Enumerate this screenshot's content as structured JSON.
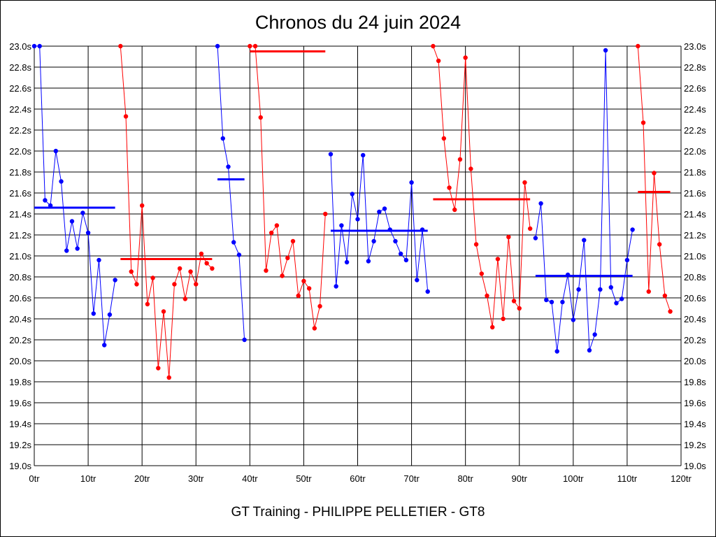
{
  "title": "Chronos du 24 juin 2024",
  "footer": "GT Training - PHILIPPE PELLETIER - GT8",
  "colors": {
    "session_a": "#0000ff",
    "session_b": "#ff0000",
    "grid": "#000000"
  },
  "chart_data": {
    "type": "line",
    "title": "Chronos du 24 juin 2024",
    "xlabel": "",
    "ylabel": "",
    "xlim": [
      0,
      120
    ],
    "ylim": [
      19.0,
      23.0
    ],
    "grid": true,
    "x_ticks": [
      "0tr",
      "10tr",
      "20tr",
      "30tr",
      "40tr",
      "50tr",
      "60tr",
      "70tr",
      "80tr",
      "90tr",
      "100tr",
      "110tr",
      "120tr"
    ],
    "y_ticks": [
      "19.0s",
      "19.2s",
      "19.4s",
      "19.6s",
      "19.8s",
      "20.0s",
      "20.2s",
      "20.4s",
      "20.6s",
      "20.8s",
      "21.0s",
      "21.2s",
      "21.4s",
      "21.6s",
      "21.8s",
      "22.0s",
      "22.2s",
      "22.4s",
      "22.6s",
      "22.8s",
      "23.0s"
    ],
    "series": [
      {
        "color": "#0000ff",
        "avg": 21.46,
        "avg_x": [
          0,
          15
        ],
        "x": [
          0,
          1,
          2,
          3,
          4,
          5,
          6,
          7,
          8,
          9,
          10,
          11,
          12,
          13,
          14,
          15
        ],
        "values": [
          23.0,
          23.0,
          21.53,
          21.48,
          22.0,
          21.71,
          21.05,
          21.33,
          21.07,
          21.41,
          21.22,
          20.45,
          20.96,
          20.15,
          20.44,
          20.77
        ]
      },
      {
        "color": "#ff0000",
        "avg": 20.97,
        "avg_x": [
          16,
          33
        ],
        "x": [
          16,
          17,
          18,
          19,
          20,
          21,
          22,
          23,
          24,
          25,
          26,
          27,
          28,
          29,
          30,
          31,
          32,
          33
        ],
        "values": [
          23.0,
          22.33,
          20.85,
          20.73,
          21.48,
          20.54,
          20.79,
          19.93,
          20.47,
          19.84,
          20.73,
          20.88,
          20.59,
          20.85,
          20.73,
          21.02,
          20.93,
          20.88
        ]
      },
      {
        "color": "#0000ff",
        "avg": 21.73,
        "avg_x": [
          34,
          39
        ],
        "x": [
          34,
          35,
          36,
          37,
          38,
          39
        ],
        "values": [
          23.0,
          22.12,
          21.85,
          21.13,
          21.01,
          20.2
        ]
      },
      {
        "color": "#ff0000",
        "avg": 22.95,
        "avg_x": [
          40,
          54
        ],
        "x": [
          40,
          41,
          42,
          43,
          44,
          45,
          46,
          47,
          48,
          49,
          50,
          51,
          52,
          53,
          54
        ],
        "values": [
          23.0,
          23.0,
          22.32,
          20.86,
          21.22,
          21.29,
          20.81,
          20.98,
          21.14,
          20.62,
          20.76,
          20.69,
          20.31,
          20.52,
          21.4
        ]
      },
      {
        "color": "#0000ff",
        "avg": 21.24,
        "avg_x": [
          55,
          73
        ],
        "x": [
          55,
          56,
          57,
          58,
          59,
          60,
          61,
          62,
          63,
          64,
          65,
          66,
          67,
          68,
          69,
          70,
          71,
          72,
          73
        ],
        "values": [
          21.97,
          20.71,
          21.29,
          20.94,
          21.59,
          21.35,
          21.96,
          20.95,
          21.14,
          21.42,
          21.45,
          21.25,
          21.14,
          21.02,
          20.96,
          21.7,
          20.77,
          21.25,
          20.66
        ]
      },
      {
        "color": "#ff0000",
        "avg": 21.54,
        "avg_x": [
          74,
          92
        ],
        "x": [
          74,
          75,
          76,
          77,
          78,
          79,
          80,
          81,
          82,
          83,
          84,
          85,
          86,
          87,
          88,
          89,
          90,
          91,
          92
        ],
        "values": [
          23.0,
          22.86,
          22.12,
          21.65,
          21.44,
          21.92,
          22.89,
          21.83,
          21.11,
          20.83,
          20.62,
          20.32,
          20.97,
          20.4,
          21.18,
          20.57,
          20.5,
          21.7,
          21.26
        ]
      },
      {
        "color": "#0000ff",
        "avg": 20.81,
        "avg_x": [
          93,
          111
        ],
        "x": [
          93,
          94,
          95,
          96,
          97,
          98,
          99,
          100,
          101,
          102,
          103,
          104,
          105,
          106,
          107,
          108,
          109,
          110,
          111
        ],
        "values": [
          21.17,
          21.5,
          20.58,
          20.56,
          20.09,
          20.56,
          20.82,
          20.39,
          20.68,
          21.15,
          20.1,
          20.25,
          20.68,
          22.96,
          20.7,
          20.55,
          20.59,
          20.96,
          21.25
        ]
      },
      {
        "color": "#ff0000",
        "avg": 21.61,
        "avg_x": [
          112,
          118
        ],
        "x": [
          112,
          113,
          114,
          115,
          116,
          117,
          118
        ],
        "values": [
          23.0,
          22.27,
          20.66,
          21.79,
          21.11,
          20.62,
          20.47
        ]
      }
    ]
  }
}
